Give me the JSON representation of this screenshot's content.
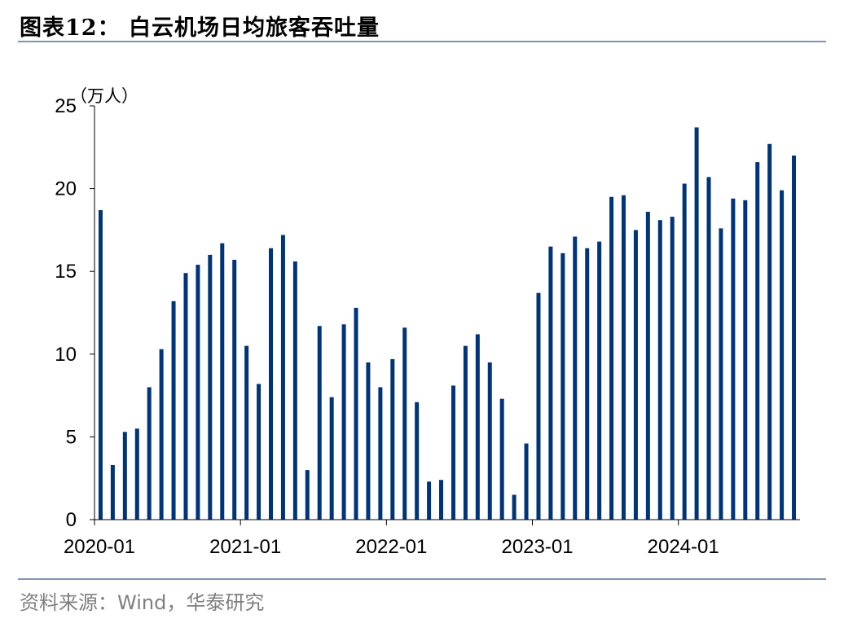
{
  "header": {
    "title": "图表12：  白云机场日均旅客吞吐量"
  },
  "footer": {
    "source": "资料来源：Wind，华泰研究"
  },
  "chart_data": {
    "type": "bar",
    "title": "白云机场日均旅客吞吐量",
    "ylabel": "（万人）",
    "xlabel": "",
    "ylim": [
      0,
      25
    ],
    "yticks": [
      0,
      5,
      10,
      15,
      20,
      25
    ],
    "x_tick_labels": [
      "2020-01",
      "2021-01",
      "2022-01",
      "2023-01",
      "2024-01"
    ],
    "bar_color": "#003478",
    "categories": [
      "2020-01",
      "2020-02",
      "2020-03",
      "2020-04",
      "2020-05",
      "2020-06",
      "2020-07",
      "2020-08",
      "2020-09",
      "2020-10",
      "2020-11",
      "2020-12",
      "2021-01",
      "2021-02",
      "2021-03",
      "2021-04",
      "2021-05",
      "2021-06",
      "2021-07",
      "2021-08",
      "2021-09",
      "2021-10",
      "2021-11",
      "2021-12",
      "2022-01",
      "2022-02",
      "2022-03",
      "2022-04",
      "2022-05",
      "2022-06",
      "2022-07",
      "2022-08",
      "2022-09",
      "2022-10",
      "2022-11",
      "2022-12",
      "2023-01",
      "2023-02",
      "2023-03",
      "2023-04",
      "2023-05",
      "2023-06",
      "2023-07",
      "2023-08",
      "2023-09",
      "2023-10",
      "2023-11",
      "2023-12",
      "2024-01",
      "2024-02",
      "2024-03",
      "2024-04",
      "2024-05",
      "2024-06",
      "2024-07",
      "2024-08",
      "2024-09",
      "2024-10"
    ],
    "values": [
      18.7,
      3.3,
      5.3,
      5.5,
      8.0,
      10.3,
      13.2,
      14.9,
      15.4,
      16.0,
      16.7,
      15.7,
      10.5,
      8.2,
      16.4,
      17.2,
      15.6,
      3.0,
      11.7,
      7.4,
      11.8,
      12.8,
      9.5,
      8.0,
      9.7,
      11.6,
      7.1,
      2.3,
      2.4,
      8.1,
      10.5,
      11.2,
      9.5,
      7.3,
      1.5,
      4.6,
      13.7,
      16.5,
      16.1,
      17.1,
      16.4,
      16.8,
      19.5,
      19.6,
      17.5,
      18.6,
      18.1,
      18.3,
      20.3,
      23.7,
      20.7,
      17.6,
      19.4,
      19.3,
      21.6,
      22.7,
      19.9,
      22.0
    ]
  }
}
